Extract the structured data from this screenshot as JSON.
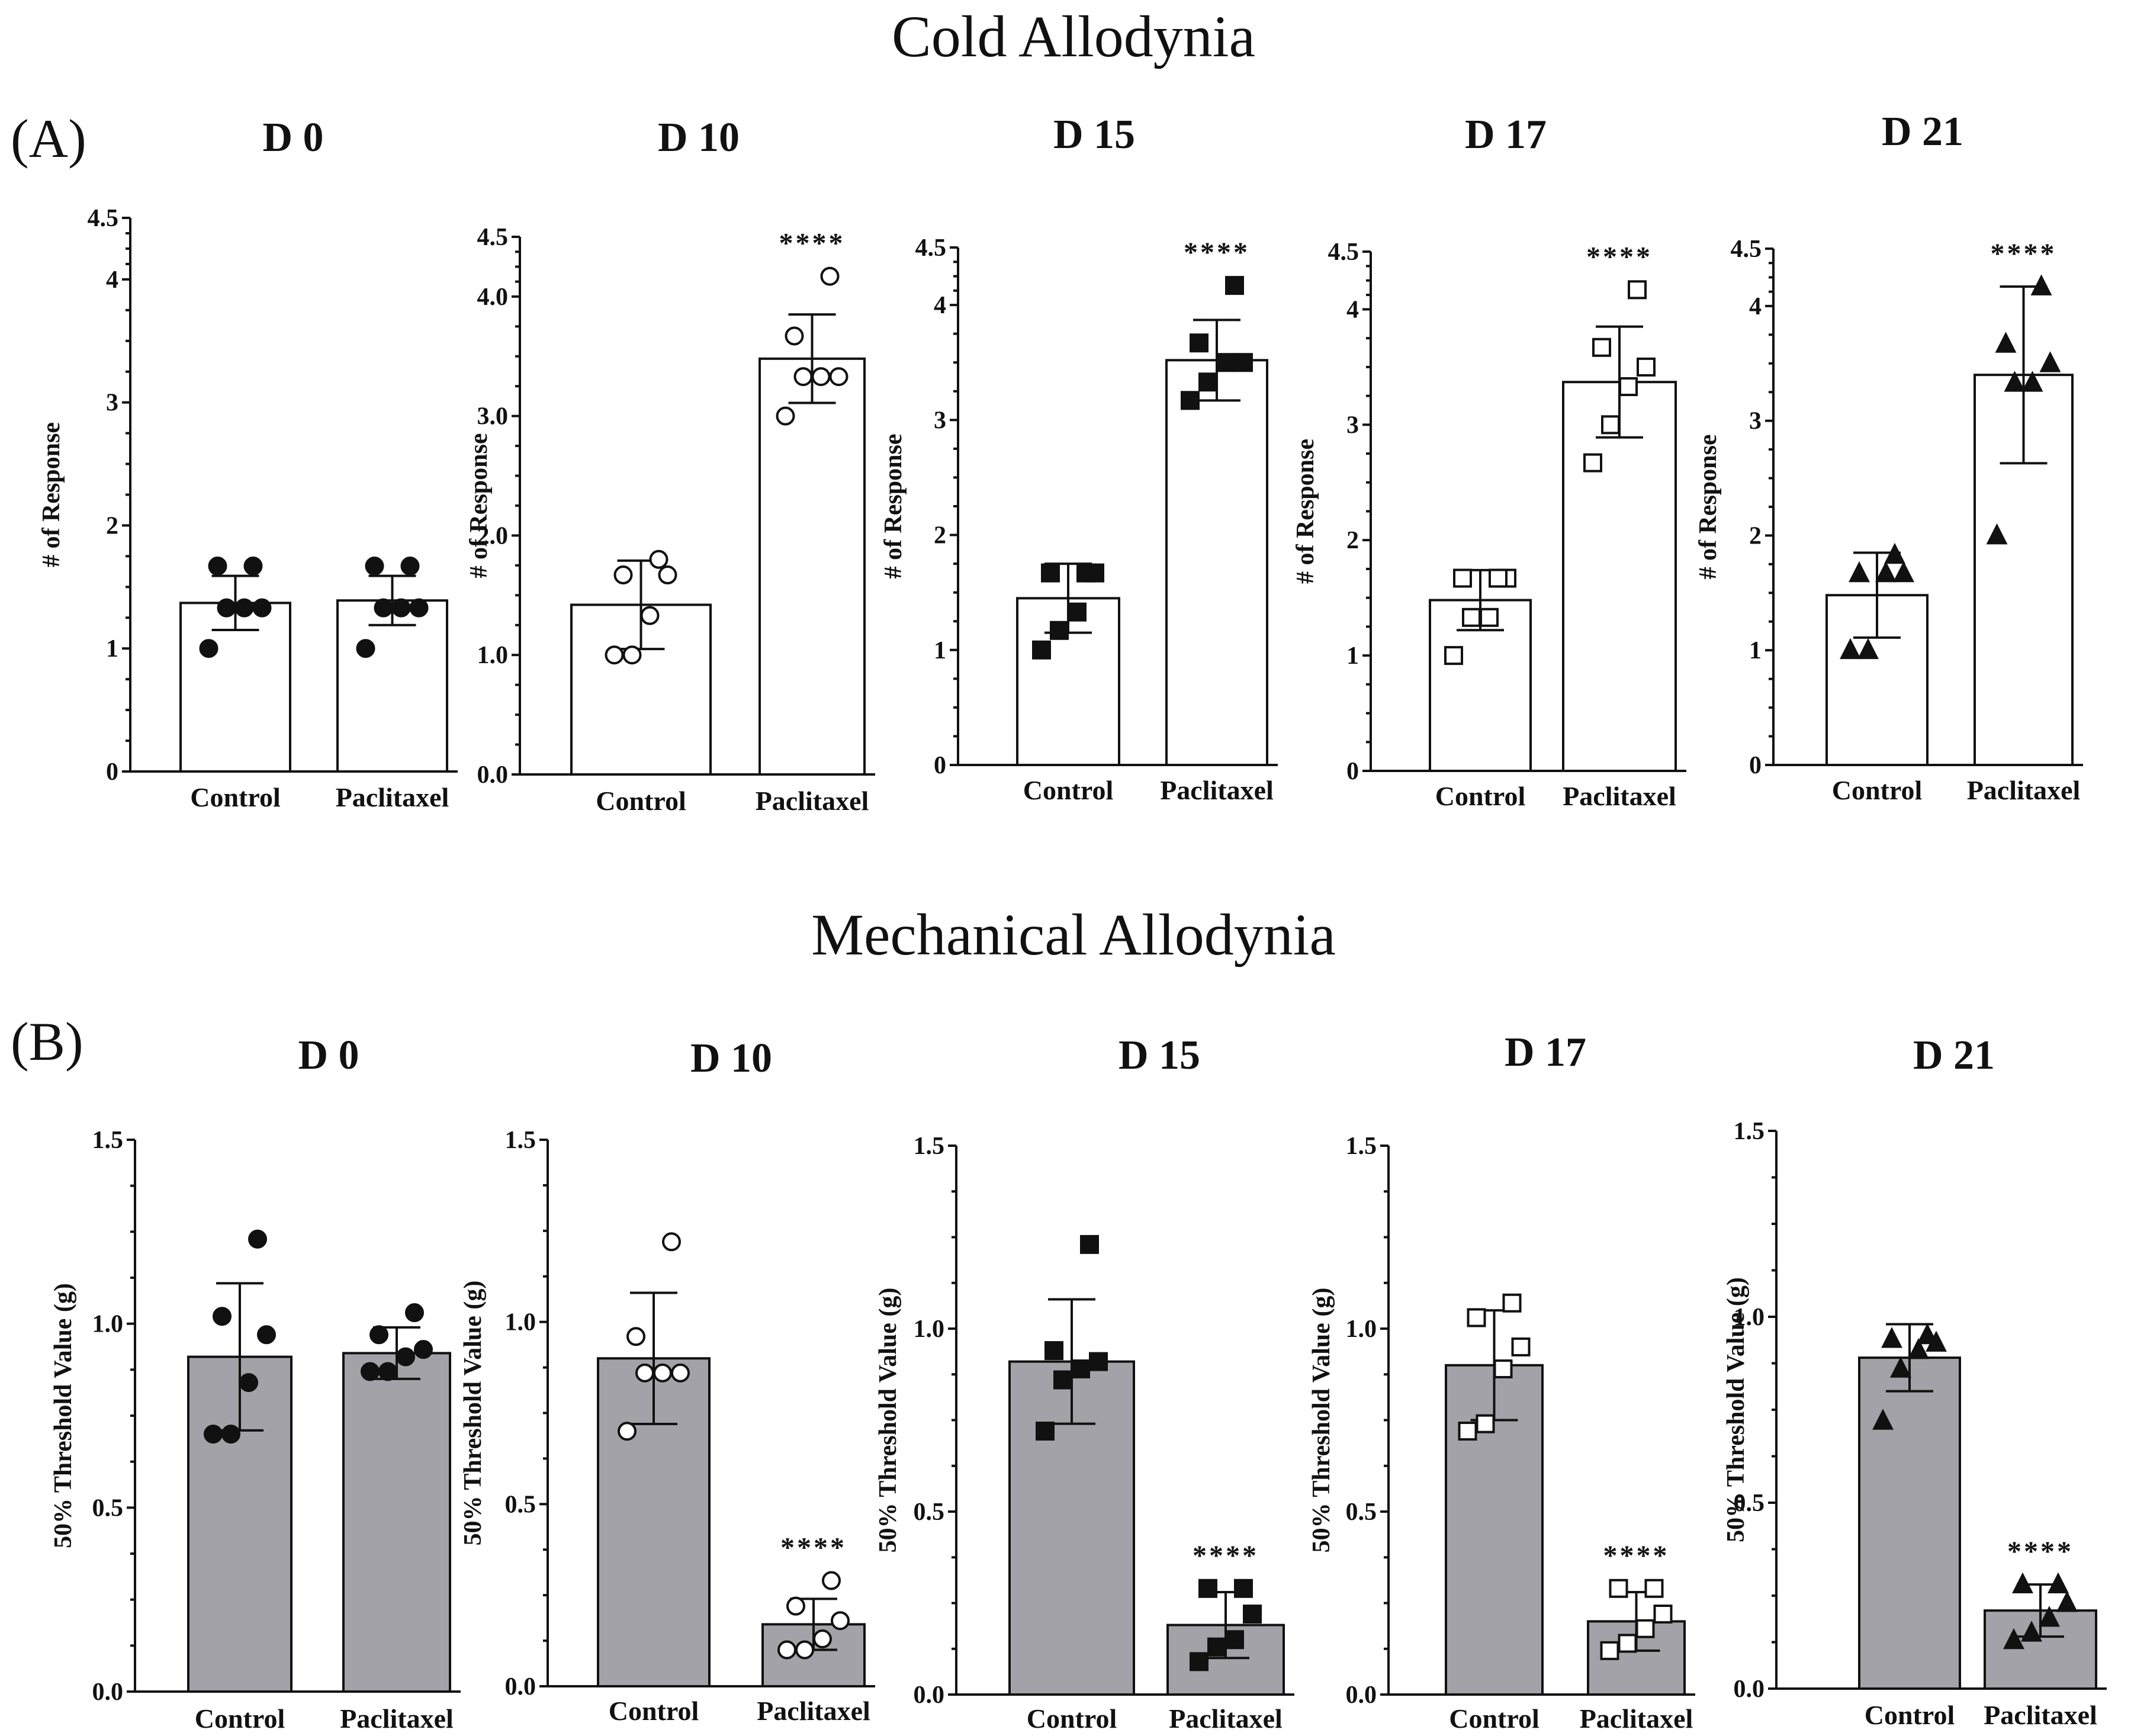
{
  "figure": {
    "section_a_title": "Cold Allodynia",
    "section_b_title": "Mechanical Allodynia",
    "panel_a_label": "(A)",
    "panel_b_label": "(B)",
    "colors": {
      "cold_bar_fill": "#ffffff",
      "mech_bar_fill": "#a3a2a8",
      "ink": "#111111"
    }
  },
  "chart_data": [
    {
      "type": "bar",
      "panel": "A",
      "title": "D 0",
      "ylabel": "# of Response",
      "xlabel": "",
      "ylim": [
        0,
        4.5
      ],
      "yticks": [
        "0",
        "1",
        "2",
        "3",
        "4",
        "4.5"
      ],
      "ytick_values": [
        0,
        1,
        2,
        3,
        4,
        4.5
      ],
      "categories": [
        "Control",
        "Paclitaxel"
      ],
      "means": [
        1.37,
        1.39
      ],
      "sd": [
        0.22,
        0.2
      ],
      "markers": [
        "circle-filled",
        "circle-filled"
      ],
      "points": [
        [
          1.0,
          1.33,
          1.33,
          1.33,
          1.67,
          1.67
        ],
        [
          1.0,
          1.33,
          1.33,
          1.33,
          1.67,
          1.67
        ]
      ],
      "significance": [
        "",
        ""
      ]
    },
    {
      "type": "bar",
      "panel": "A",
      "title": "D 10",
      "ylabel": "# of Response",
      "xlabel": "",
      "ylim": [
        0,
        4.5
      ],
      "yticks": [
        "0.0",
        "1.0",
        "2.0",
        "3.0",
        "4.0",
        "4.5"
      ],
      "ytick_values": [
        0,
        1,
        2,
        3,
        4,
        4.5
      ],
      "categories": [
        "Control",
        "Paclitaxel"
      ],
      "means": [
        1.42,
        3.48
      ],
      "sd": [
        0.37,
        0.37
      ],
      "markers": [
        "circle-open",
        "circle-open"
      ],
      "points": [
        [
          1.0,
          1.0,
          1.33,
          1.67,
          1.67,
          1.8
        ],
        [
          3.0,
          3.33,
          3.33,
          3.33,
          3.67,
          4.17
        ]
      ],
      "significance": [
        "",
        "****"
      ]
    },
    {
      "type": "bar",
      "panel": "A",
      "title": "D 15",
      "ylabel": "# of Response",
      "xlabel": "",
      "ylim": [
        0,
        4.5
      ],
      "yticks": [
        "0",
        "1",
        "2",
        "3",
        "4",
        "4.5"
      ],
      "ytick_values": [
        0,
        1,
        2,
        3,
        4,
        4.5
      ],
      "categories": [
        "Control",
        "Paclitaxel"
      ],
      "means": [
        1.45,
        3.52
      ],
      "sd": [
        0.3,
        0.35
      ],
      "markers": [
        "square-filled",
        "square-filled"
      ],
      "points": [
        [
          1.0,
          1.17,
          1.33,
          1.67,
          1.67,
          1.67
        ],
        [
          3.17,
          3.33,
          3.5,
          3.5,
          3.67,
          4.17
        ]
      ],
      "significance": [
        "",
        "****"
      ]
    },
    {
      "type": "bar",
      "panel": "A",
      "title": "D 17",
      "ylabel": "# of Response",
      "xlabel": "",
      "ylim": [
        0,
        4.5
      ],
      "yticks": [
        "0",
        "1",
        "2",
        "3",
        "4",
        "4.5"
      ],
      "ytick_values": [
        0,
        1,
        2,
        3,
        4,
        4.5
      ],
      "categories": [
        "Control",
        "Paclitaxel"
      ],
      "means": [
        1.48,
        3.37
      ],
      "sd": [
        0.26,
        0.48
      ],
      "markers": [
        "square-open",
        "square-open"
      ],
      "points": [
        [
          1.0,
          1.33,
          1.33,
          1.67,
          1.67,
          1.67
        ],
        [
          2.67,
          3.0,
          3.33,
          3.5,
          3.67,
          4.17
        ]
      ],
      "significance": [
        "",
        "****"
      ]
    },
    {
      "type": "bar",
      "panel": "A",
      "title": "D 21",
      "ylabel": "# of Response",
      "xlabel": "",
      "ylim": [
        0,
        4.5
      ],
      "yticks": [
        "0",
        "1",
        "2",
        "3",
        "4",
        "4.5"
      ],
      "ytick_values": [
        0,
        1,
        2,
        3,
        4,
        4.5
      ],
      "categories": [
        "Control",
        "Paclitaxel"
      ],
      "means": [
        1.48,
        3.4
      ],
      "sd": [
        0.37,
        0.77
      ],
      "markers": [
        "triangle-filled",
        "triangle-filled"
      ],
      "points": [
        [
          1.0,
          1.0,
          1.67,
          1.67,
          1.67,
          1.83
        ],
        [
          2.0,
          3.33,
          3.33,
          3.5,
          3.67,
          4.17
        ]
      ],
      "significance": [
        "",
        "****"
      ]
    },
    {
      "type": "bar",
      "panel": "B",
      "title": "D 0",
      "ylabel": "50% Threshold Value (g)",
      "xlabel": "",
      "ylim": [
        0,
        1.5
      ],
      "yticks": [
        "0.0",
        "0.5",
        "1.0",
        "1.5"
      ],
      "ytick_values": [
        0,
        0.5,
        1,
        1.5
      ],
      "categories": [
        "Control",
        "Paclitaxel"
      ],
      "means": [
        0.91,
        0.92
      ],
      "sd": [
        0.2,
        0.07
      ],
      "markers": [
        "circle-filled",
        "circle-filled"
      ],
      "points": [
        [
          0.7,
          0.7,
          0.84,
          0.97,
          1.02,
          1.23
        ],
        [
          0.87,
          0.87,
          0.91,
          0.93,
          0.97,
          1.03
        ]
      ],
      "significance": [
        "",
        ""
      ]
    },
    {
      "type": "bar",
      "panel": "B",
      "title": "D 10",
      "ylabel": "50% Threshold Value (g)",
      "xlabel": "",
      "ylim": [
        0,
        1.5
      ],
      "yticks": [
        "0.0",
        "0.5",
        "1.0",
        "1.5"
      ],
      "ytick_values": [
        0,
        0.5,
        1,
        1.5
      ],
      "categories": [
        "Control",
        "Paclitaxel"
      ],
      "means": [
        0.9,
        0.17
      ],
      "sd": [
        0.18,
        0.07
      ],
      "markers": [
        "circle-open",
        "circle-open"
      ],
      "points": [
        [
          0.7,
          0.86,
          0.86,
          0.86,
          0.96,
          1.22
        ],
        [
          0.1,
          0.1,
          0.13,
          0.18,
          0.22,
          0.29
        ]
      ],
      "significance": [
        "",
        "****"
      ]
    },
    {
      "type": "bar",
      "panel": "B",
      "title": "D 15",
      "ylabel": "50% Threshold Value (g)",
      "xlabel": "",
      "ylim": [
        0,
        1.5
      ],
      "yticks": [
        "0.0",
        "0.5",
        "1.0",
        "1.5"
      ],
      "ytick_values": [
        0,
        0.5,
        1,
        1.5
      ],
      "categories": [
        "Control",
        "Paclitaxel"
      ],
      "means": [
        0.91,
        0.19
      ],
      "sd": [
        0.17,
        0.09
      ],
      "markers": [
        "square-filled",
        "square-filled"
      ],
      "points": [
        [
          0.72,
          0.86,
          0.89,
          0.91,
          0.94,
          1.23
        ],
        [
          0.09,
          0.13,
          0.15,
          0.22,
          0.29,
          0.29
        ]
      ],
      "significance": [
        "",
        "****"
      ]
    },
    {
      "type": "bar",
      "panel": "B",
      "title": "D 17",
      "ylabel": "50% Threshold Value (g)",
      "xlabel": "",
      "ylim": [
        0,
        1.5
      ],
      "yticks": [
        "0.0",
        "0.5",
        "1.0",
        "1.5"
      ],
      "ytick_values": [
        0,
        0.5,
        1,
        1.5
      ],
      "categories": [
        "Control",
        "Paclitaxel"
      ],
      "means": [
        0.9,
        0.2
      ],
      "sd": [
        0.15,
        0.08
      ],
      "markers": [
        "square-open",
        "square-open"
      ],
      "points": [
        [
          0.72,
          0.74,
          0.89,
          0.95,
          1.03,
          1.07
        ],
        [
          0.12,
          0.14,
          0.18,
          0.22,
          0.29,
          0.29
        ]
      ],
      "significance": [
        "",
        "****"
      ]
    },
    {
      "type": "bar",
      "panel": "B",
      "title": "D 21",
      "ylabel": "50% Threshold Value (g)",
      "xlabel": "",
      "ylim": [
        0,
        1.5
      ],
      "yticks": [
        "0.0",
        "0.5",
        "1.0",
        "1.5"
      ],
      "ytick_values": [
        0,
        0.5,
        1,
        1.5
      ],
      "categories": [
        "Control",
        "Paclitaxel"
      ],
      "means": [
        0.89,
        0.21
      ],
      "sd": [
        0.09,
        0.07
      ],
      "markers": [
        "triangle-filled",
        "triangle-filled"
      ],
      "points": [
        [
          0.72,
          0.86,
          0.91,
          0.93,
          0.94,
          0.95
        ],
        [
          0.13,
          0.15,
          0.19,
          0.23,
          0.28,
          0.28
        ]
      ],
      "significance": [
        "",
        "****"
      ]
    }
  ]
}
